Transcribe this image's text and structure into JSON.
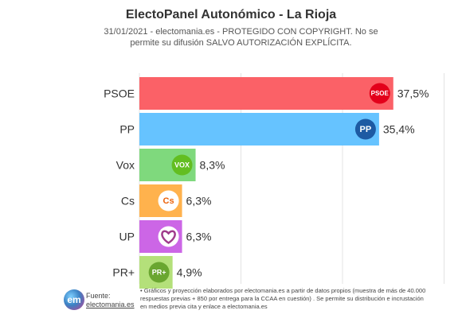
{
  "header": {
    "title": "ElectoPanel Autonómico - La Rioja",
    "subtitle": "31/01/2021 - electomania.es - PROTEGIDO CON COPYRIGHT. No se permite su difusión SALVO AUTORIZACIÓN EXPLÍCITA."
  },
  "footer": {
    "logo_text": "em",
    "source_label": "Fuente:",
    "source_link": "electomania.es",
    "note": "• Gráficos y proyección elaborados por electomania.es a partir de datos propios (muestra de más de 40.000 respuestas previas + 850 por entrega para la CCAA en cuestión) . Se permite su distribución e incrustación en medios previa cita y enlace a electomania.es"
  },
  "chart_data": {
    "type": "bar",
    "orientation": "horizontal",
    "categories": [
      "PSOE",
      "PP",
      "Vox",
      "Cs",
      "UP",
      "PR+"
    ],
    "values": [
      37.5,
      35.4,
      8.3,
      6.3,
      6.3,
      4.9
    ],
    "value_labels": [
      "37,5%",
      "35,4%",
      "8,3%",
      "6,3%",
      "6,3%",
      "4,9%"
    ],
    "colors": [
      "#fb6167",
      "#66c3ff",
      "#7fd97d",
      "#ffb24d",
      "#cc66e6",
      "#b4e07a"
    ],
    "logos": [
      {
        "icon": "psoe-logo-icon",
        "text": "PSOE",
        "bg": "#e3001b",
        "fg": "#ffffff"
      },
      {
        "icon": "pp-logo-icon",
        "text": "PP",
        "bg": "#1d5aa3",
        "fg": "#ffffff"
      },
      {
        "icon": "vox-logo-icon",
        "text": "VOX",
        "bg": "#63be21",
        "fg": "#ffffff"
      },
      {
        "icon": "cs-logo-icon",
        "text": "Cs",
        "bg": "#ffffff",
        "fg": "#eb6109"
      },
      {
        "icon": "up-heart-logo-icon",
        "text": "",
        "bg": "#ffffff",
        "fg": "#a03c8c"
      },
      {
        "icon": "prplus-logo-icon",
        "text": "PR+",
        "bg": "#6aa630",
        "fg": "#ffffff"
      }
    ],
    "xlim": [
      0,
      45
    ],
    "grid": true,
    "legend": "none"
  }
}
